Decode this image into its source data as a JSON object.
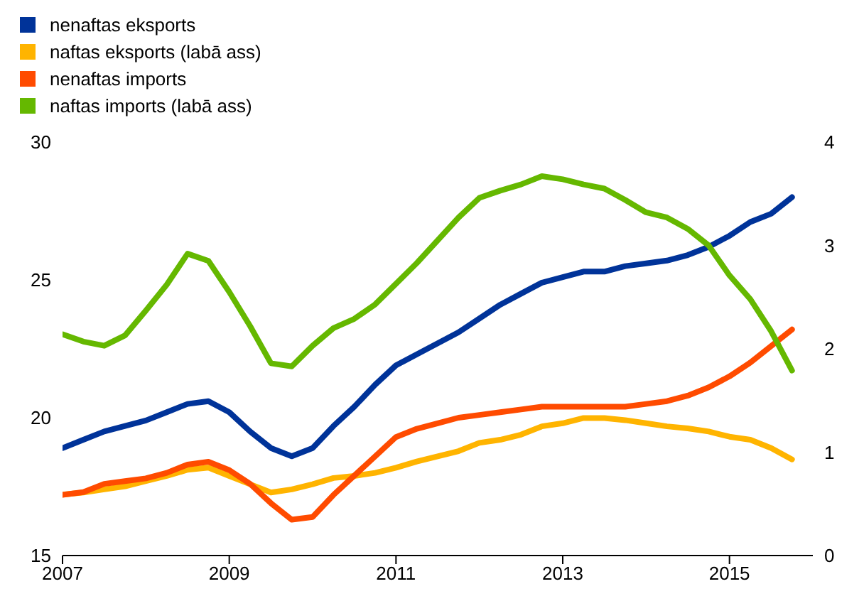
{
  "chart_data": {
    "type": "line",
    "x": [
      2007,
      2007.25,
      2007.5,
      2007.75,
      2008,
      2008.25,
      2008.5,
      2008.75,
      2009,
      2009.25,
      2009.5,
      2009.75,
      2010,
      2010.25,
      2010.5,
      2010.75,
      2011,
      2011.25,
      2011.5,
      2011.75,
      2012,
      2012.25,
      2012.5,
      2012.75,
      2013,
      2013.25,
      2013.5,
      2013.75,
      2014,
      2014.25,
      2014.5,
      2014.75,
      2015,
      2015.25,
      2015.5,
      2015.75
    ],
    "series": [
      {
        "name": "nenaftas eksports",
        "color": "#003399",
        "values": [
          18.9,
          19.2,
          19.5,
          19.7,
          19.9,
          20.2,
          20.5,
          20.6,
          20.2,
          19.5,
          18.9,
          18.6,
          18.9,
          19.7,
          20.4,
          21.2,
          21.9,
          22.3,
          22.7,
          23.1,
          23.6,
          24.1,
          24.5,
          24.9,
          25.1,
          25.3,
          25.3,
          25.5,
          25.6,
          25.7,
          25.9,
          26.2,
          26.6,
          27.1,
          27.4,
          28.0
        ]
      },
      {
        "name": "naftas eksports (labā ass)",
        "color": "#ffb400",
        "axis": "y2",
        "values": [
          0.59,
          0.61,
          0.64,
          0.67,
          0.72,
          0.77,
          0.83,
          0.85,
          0.77,
          0.69,
          0.61,
          0.64,
          0.69,
          0.75,
          0.77,
          0.8,
          0.85,
          0.91,
          0.96,
          1.01,
          1.09,
          1.12,
          1.17,
          1.25,
          1.28,
          1.33,
          1.33,
          1.31,
          1.28,
          1.25,
          1.23,
          1.2,
          1.15,
          1.12,
          1.04,
          0.93
        ]
      },
      {
        "name": "nenaftas imports",
        "color": "#ff4b00",
        "values": [
          17.2,
          17.3,
          17.6,
          17.7,
          17.8,
          18.0,
          18.3,
          18.4,
          18.1,
          17.6,
          16.9,
          16.3,
          16.4,
          17.2,
          17.9,
          18.6,
          19.3,
          19.6,
          19.8,
          20.0,
          20.1,
          20.2,
          20.3,
          20.4,
          20.4,
          20.4,
          20.4,
          20.4,
          20.5,
          20.6,
          20.8,
          21.1,
          21.5,
          22.0,
          22.6,
          23.2
        ]
      },
      {
        "name": "naftas  imports (labā ass)",
        "color": "#65b800",
        "axis": "y2",
        "values": [
          2.14,
          2.07,
          2.03,
          2.13,
          2.37,
          2.62,
          2.92,
          2.85,
          2.55,
          2.22,
          1.86,
          1.83,
          2.03,
          2.2,
          2.29,
          2.43,
          2.63,
          2.83,
          3.05,
          3.27,
          3.46,
          3.53,
          3.59,
          3.67,
          3.64,
          3.59,
          3.55,
          3.44,
          3.32,
          3.27,
          3.16,
          3.0,
          2.71,
          2.48,
          2.17,
          1.79
        ]
      }
    ],
    "xlim": [
      2007,
      2016
    ],
    "xticks": [
      2007,
      2009,
      2011,
      2013,
      2015
    ],
    "ylim": [
      15,
      30
    ],
    "yticks": [
      15,
      20,
      25,
      30
    ],
    "y2lim": [
      0,
      4
    ],
    "y2ticks": [
      0,
      1,
      2,
      3,
      4
    ],
    "legend": "top left",
    "marker": "none",
    "line_style": "solid"
  }
}
